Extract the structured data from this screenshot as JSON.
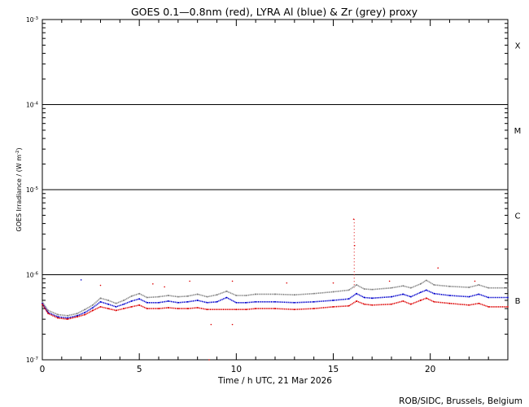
{
  "chart_data": {
    "type": "scatter",
    "title": "GOES 0.1—0.8nm (red), LYRA Al (blue) & Zr (grey) proxy",
    "xlabel": "Time / h UTC, 21 Mar 2026",
    "ylabel_main": "GOES Irradiance / (W m",
    "ylabel_exp": "-2",
    "ylabel_close": ")",
    "credit": "ROB/SIDC, Brussels, Belgium",
    "x_range": [
      0,
      24
    ],
    "y_range": [
      1e-07,
      0.001
    ],
    "y_scale": "log",
    "x_ticks": [
      0,
      5,
      10,
      15,
      20
    ],
    "y_ticks": [
      {
        "value": 1e-07,
        "base": "10",
        "exp": "-7"
      },
      {
        "value": 1e-06,
        "base": "10",
        "exp": "-6"
      },
      {
        "value": 1e-05,
        "base": "10",
        "exp": "-5"
      },
      {
        "value": 0.0001,
        "base": "10",
        "exp": "-4"
      },
      {
        "value": 0.001,
        "base": "10",
        "exp": "-3"
      }
    ],
    "flare_class_lines": [
      1e-06,
      1e-05,
      0.0001
    ],
    "flare_classes": [
      {
        "label": "B",
        "value": 5e-07
      },
      {
        "label": "C",
        "value": 5e-06
      },
      {
        "label": "M",
        "value": 5e-05
      },
      {
        "label": "X",
        "value": 0.0005
      }
    ],
    "series": [
      {
        "name": "Zr (grey) proxy",
        "color": "#808080",
        "points": [
          [
            0,
            4.8e-07
          ],
          [
            0.3,
            3.8e-07
          ],
          [
            0.8,
            3.4e-07
          ],
          [
            1.3,
            3.3e-07
          ],
          [
            1.8,
            3.5e-07
          ],
          [
            2.2,
            3.9e-07
          ],
          [
            2.6,
            4.4e-07
          ],
          [
            3.0,
            5.3e-07
          ],
          [
            3.4,
            5e-07
          ],
          [
            3.8,
            4.6e-07
          ],
          [
            4.2,
            5e-07
          ],
          [
            4.6,
            5.6e-07
          ],
          [
            5.0,
            6e-07
          ],
          [
            5.4,
            5.4e-07
          ],
          [
            6.0,
            5.5e-07
          ],
          [
            6.5,
            5.7e-07
          ],
          [
            7.0,
            5.5e-07
          ],
          [
            7.5,
            5.6e-07
          ],
          [
            8.0,
            5.9e-07
          ],
          [
            8.5,
            5.5e-07
          ],
          [
            9.0,
            5.8e-07
          ],
          [
            9.5,
            6.4e-07
          ],
          [
            10.0,
            5.7e-07
          ],
          [
            10.5,
            5.7e-07
          ],
          [
            11.0,
            5.9e-07
          ],
          [
            12.0,
            5.9e-07
          ],
          [
            13.0,
            5.8e-07
          ],
          [
            14.0,
            6e-07
          ],
          [
            15.0,
            6.3e-07
          ],
          [
            15.8,
            6.6e-07
          ],
          [
            16.2,
            7.6e-07
          ],
          [
            16.6,
            6.8e-07
          ],
          [
            17.0,
            6.7e-07
          ],
          [
            18.0,
            7e-07
          ],
          [
            18.6,
            7.4e-07
          ],
          [
            19.0,
            7e-07
          ],
          [
            19.5,
            7.8e-07
          ],
          [
            19.8,
            8.6e-07
          ],
          [
            20.2,
            7.6e-07
          ],
          [
            21.0,
            7.3e-07
          ],
          [
            22.0,
            7.1e-07
          ],
          [
            22.5,
            7.6e-07
          ],
          [
            23.0,
            7e-07
          ],
          [
            24.0,
            7e-07
          ]
        ]
      },
      {
        "name": "LYRA Al (blue)",
        "color": "#0000cc",
        "points": [
          [
            0,
            4.6e-07
          ],
          [
            0.3,
            3.6e-07
          ],
          [
            0.8,
            3.2e-07
          ],
          [
            1.3,
            3.1e-07
          ],
          [
            1.8,
            3.3e-07
          ],
          [
            2.2,
            3.6e-07
          ],
          [
            2.6,
            4.1e-07
          ],
          [
            3.0,
            4.8e-07
          ],
          [
            3.4,
            4.5e-07
          ],
          [
            3.8,
            4.2e-07
          ],
          [
            4.2,
            4.5e-07
          ],
          [
            4.6,
            4.9e-07
          ],
          [
            5.0,
            5.2e-07
          ],
          [
            5.4,
            4.7e-07
          ],
          [
            6.0,
            4.7e-07
          ],
          [
            6.5,
            4.9e-07
          ],
          [
            7.0,
            4.7e-07
          ],
          [
            7.5,
            4.8e-07
          ],
          [
            8.0,
            5e-07
          ],
          [
            8.5,
            4.7e-07
          ],
          [
            9.0,
            4.8e-07
          ],
          [
            9.5,
            5.4e-07
          ],
          [
            10.0,
            4.7e-07
          ],
          [
            10.5,
            4.7e-07
          ],
          [
            11.0,
            4.8e-07
          ],
          [
            12.0,
            4.8e-07
          ],
          [
            13.0,
            4.7e-07
          ],
          [
            14.0,
            4.8e-07
          ],
          [
            15.0,
            5e-07
          ],
          [
            15.8,
            5.2e-07
          ],
          [
            16.2,
            6e-07
          ],
          [
            16.6,
            5.4e-07
          ],
          [
            17.0,
            5.3e-07
          ],
          [
            18.0,
            5.5e-07
          ],
          [
            18.6,
            5.9e-07
          ],
          [
            19.0,
            5.5e-07
          ],
          [
            19.5,
            6.2e-07
          ],
          [
            19.8,
            6.6e-07
          ],
          [
            20.2,
            6e-07
          ],
          [
            21.0,
            5.7e-07
          ],
          [
            22.0,
            5.5e-07
          ],
          [
            22.5,
            5.9e-07
          ],
          [
            23.0,
            5.4e-07
          ],
          [
            24.0,
            5.4e-07
          ]
        ]
      },
      {
        "name": "GOES 0.1—0.8nm (red)",
        "color": "#dd0000",
        "points": [
          [
            0,
            4.5e-07
          ],
          [
            0.3,
            3.5e-07
          ],
          [
            0.8,
            3.1e-07
          ],
          [
            1.3,
            3e-07
          ],
          [
            1.8,
            3.2e-07
          ],
          [
            2.2,
            3.4e-07
          ],
          [
            2.6,
            3.8e-07
          ],
          [
            3.0,
            4.2e-07
          ],
          [
            3.4,
            4e-07
          ],
          [
            3.8,
            3.8e-07
          ],
          [
            4.2,
            4e-07
          ],
          [
            4.6,
            4.2e-07
          ],
          [
            5.0,
            4.4e-07
          ],
          [
            5.4,
            4e-07
          ],
          [
            6.0,
            4e-07
          ],
          [
            6.5,
            4.1e-07
          ],
          [
            7.0,
            4e-07
          ],
          [
            7.5,
            4e-07
          ],
          [
            8.0,
            4.1e-07
          ],
          [
            8.5,
            3.9e-07
          ],
          [
            10.0,
            3.9e-07
          ],
          [
            10.5,
            3.9e-07
          ],
          [
            11.0,
            4e-07
          ],
          [
            12.0,
            4e-07
          ],
          [
            13.0,
            3.9e-07
          ],
          [
            14.0,
            4e-07
          ],
          [
            15.0,
            4.2e-07
          ],
          [
            15.8,
            4.3e-07
          ],
          [
            16.2,
            4.9e-07
          ],
          [
            16.6,
            4.5e-07
          ],
          [
            17.0,
            4.4e-07
          ],
          [
            18.0,
            4.5e-07
          ],
          [
            18.6,
            4.9e-07
          ],
          [
            19.0,
            4.5e-07
          ],
          [
            19.5,
            5e-07
          ],
          [
            19.8,
            5.3e-07
          ],
          [
            20.2,
            4.8e-07
          ],
          [
            21.0,
            4.6e-07
          ],
          [
            22.0,
            4.4e-07
          ],
          [
            22.5,
            4.6e-07
          ],
          [
            23.0,
            4.2e-07
          ],
          [
            24.0,
            4.2e-07
          ]
        ]
      }
    ],
    "spikes": [
      {
        "x": 16.05,
        "y": 4.5e-06,
        "color": "#dd0000"
      },
      {
        "x": 16.1,
        "y": 2.2e-06,
        "color": "#dd0000"
      },
      {
        "x": 3.0,
        "y": 7.5e-07,
        "color": "#dd0000"
      },
      {
        "x": 5.7,
        "y": 7.8e-07,
        "color": "#dd0000"
      },
      {
        "x": 6.3,
        "y": 7.2e-07,
        "color": "#dd0000"
      },
      {
        "x": 7.6,
        "y": 8.4e-07,
        "color": "#dd0000"
      },
      {
        "x": 9.8,
        "y": 8.4e-07,
        "color": "#dd0000"
      },
      {
        "x": 12.6,
        "y": 8e-07,
        "color": "#dd0000"
      },
      {
        "x": 15.0,
        "y": 8e-07,
        "color": "#dd0000"
      },
      {
        "x": 17.9,
        "y": 8.4e-07,
        "color": "#dd0000"
      },
      {
        "x": 20.4,
        "y": 1.2e-06,
        "color": "#dd0000"
      },
      {
        "x": 22.3,
        "y": 8.4e-07,
        "color": "#dd0000"
      },
      {
        "x": 8.7,
        "y": 2.6e-07,
        "color": "#dd0000"
      },
      {
        "x": 9.8,
        "y": 2.6e-07,
        "color": "#dd0000"
      },
      {
        "x": 8.6,
        "y": 1e-07,
        "color": "#dd0000"
      },
      {
        "x": 2.0,
        "y": 8.7e-07,
        "color": "#0000cc"
      }
    ]
  }
}
